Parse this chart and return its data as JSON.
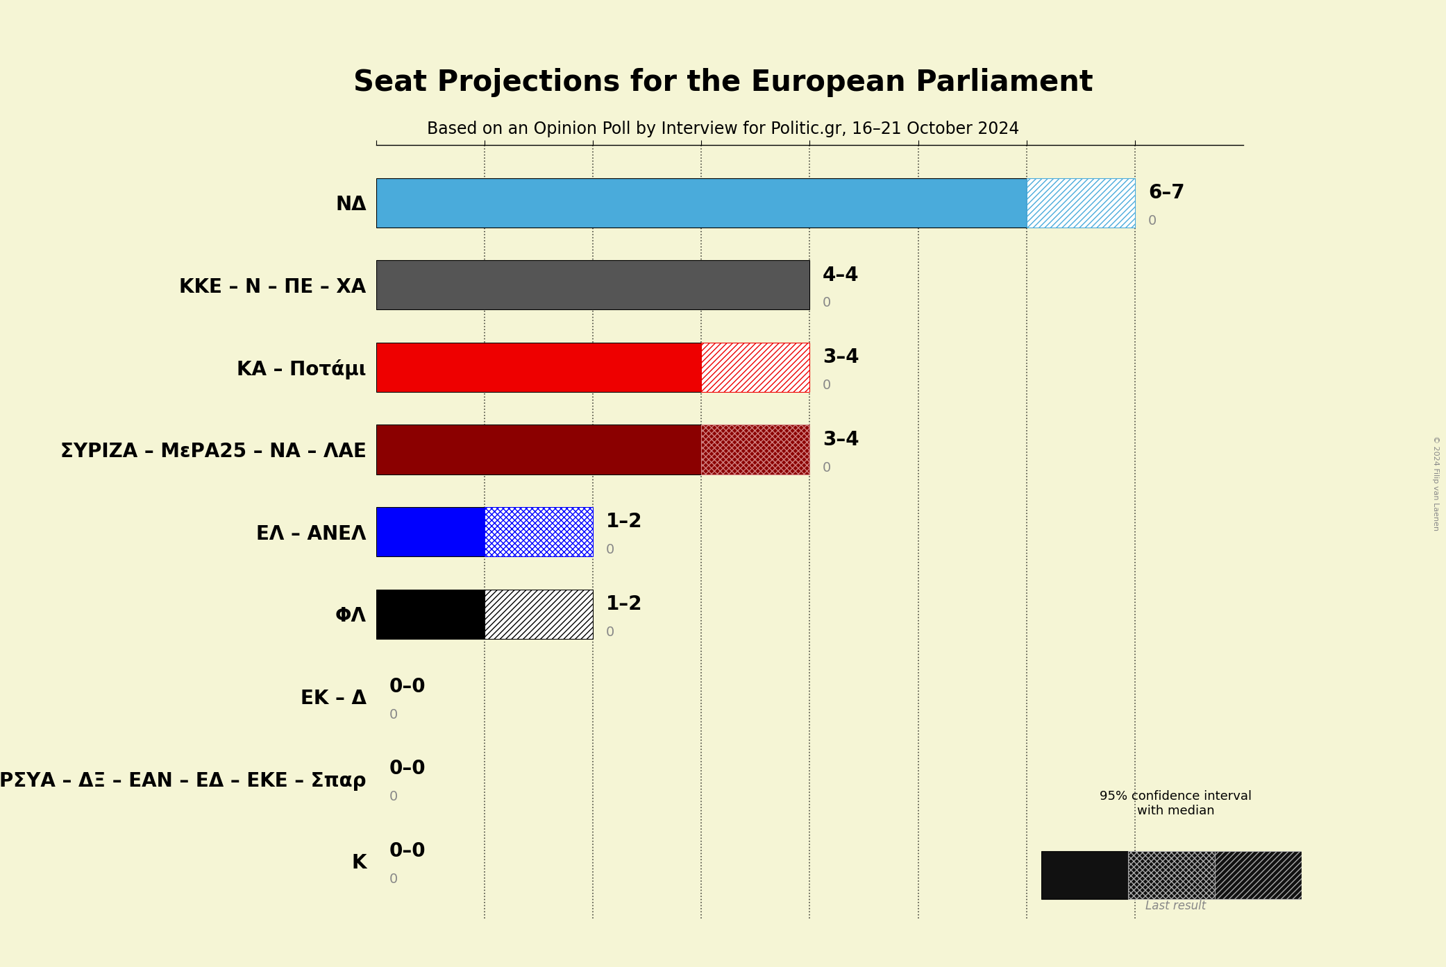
{
  "title": "Seat Projections for the European Parliament",
  "subtitle": "Based on an Opinion Poll by Interview for Politic.gr, 16–21 October 2024",
  "copyright": "© 2024 Filip van Laenen",
  "background_color": "#f5f5d5",
  "parties": [
    {
      "name": "NΔ",
      "median": 6,
      "high": 7,
      "last": 0,
      "color": "#4aabdb",
      "hatch_style": "diagonal_light",
      "label": "6–7"
    },
    {
      "name": "KKE – N – ΠE – XA",
      "median": 4,
      "high": 4,
      "last": 0,
      "color": "#555555",
      "hatch_style": null,
      "label": "4–4"
    },
    {
      "name": "KA – Ποτάμι",
      "median": 3,
      "high": 4,
      "last": 0,
      "color": "#ee0000",
      "hatch_style": "diagonal_light",
      "label": "3–4"
    },
    {
      "name": "ΣΥΡΙΖΑ – ΜεΡΑ25 – ΝΑ – ΛΑE",
      "median": 3,
      "high": 4,
      "last": 0,
      "color": "#8b0000",
      "hatch_style": "cross_same",
      "label": "3–4"
    },
    {
      "name": "EΛ – ΑΝEΛ",
      "median": 1,
      "high": 2,
      "last": 0,
      "color": "#0000ff",
      "hatch_style": "cross_light",
      "label": "1–2"
    },
    {
      "name": "ΦΛ",
      "median": 1,
      "high": 2,
      "last": 0,
      "color": "#000000",
      "hatch_style": "diagonal_light",
      "label": "1–2"
    },
    {
      "name": "EK – Δ",
      "median": 0,
      "high": 0,
      "last": 0,
      "color": "#888888",
      "hatch_style": null,
      "label": "0–0"
    },
    {
      "name": "ΑΝΤΑΡΣΥΑ – ΔΞ – EΑΝ – EΔ – EKE – Σπαρ",
      "median": 0,
      "high": 0,
      "last": 0,
      "color": "#888888",
      "hatch_style": null,
      "label": "0–0"
    },
    {
      "name": "K",
      "median": 0,
      "high": 0,
      "last": 0,
      "color": "#888888",
      "hatch_style": null,
      "label": "0–0"
    }
  ],
  "xlim": [
    0,
    8
  ],
  "xticks": [
    0,
    1,
    2,
    3,
    4,
    5,
    6,
    7
  ],
  "bar_height": 0.6,
  "label_fontsize": 20,
  "title_fontsize": 30,
  "subtitle_fontsize": 17
}
